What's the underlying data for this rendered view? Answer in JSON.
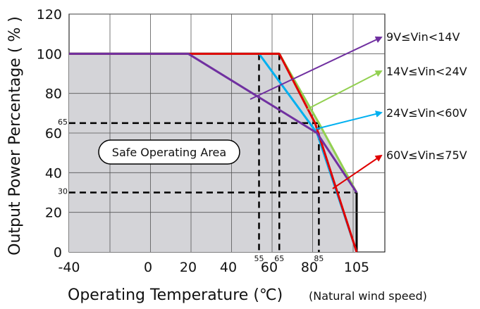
{
  "chart_data": {
    "type": "line",
    "title": "",
    "xlabel": "Operating Temperature (℃)",
    "xlabel_note": "(Natural wind speed)",
    "ylabel": "Output Power Percentage ( % )",
    "xlim": [
      -40,
      105
    ],
    "ylim": [
      0,
      120
    ],
    "x_ticks": [
      "-40",
      "0",
      "20",
      "40",
      "60",
      "80",
      "105"
    ],
    "y_ticks": [
      "0",
      "20",
      "40",
      "60",
      "80",
      "100",
      "120"
    ],
    "grid": true,
    "annotation": "Safe Operating Area",
    "reference_points": {
      "x_labels": [
        "55",
        "65",
        "85"
      ],
      "y_labels": [
        "65",
        "30"
      ]
    },
    "series": [
      {
        "name": "9V≤Vin<14V",
        "color": "#7030a0",
        "x": [
          -40,
          20,
          84,
          105
        ],
        "y": [
          100,
          100,
          60,
          30
        ]
      },
      {
        "name": "14V≤Vin<24V",
        "color": "#92d050",
        "x": [
          -40,
          65,
          85,
          105
        ],
        "y": [
          100,
          100,
          65,
          30
        ]
      },
      {
        "name": "24V≤Vin<60V",
        "color": "#00b0f0",
        "x": [
          -40,
          55,
          84,
          105
        ],
        "y": [
          100,
          100,
          60,
          0
        ]
      },
      {
        "name": "60V≤Vin≤75V",
        "color": "#e00000",
        "x": [
          -40,
          65,
          83,
          105
        ],
        "y": [
          100,
          100,
          65,
          0
        ]
      }
    ]
  }
}
